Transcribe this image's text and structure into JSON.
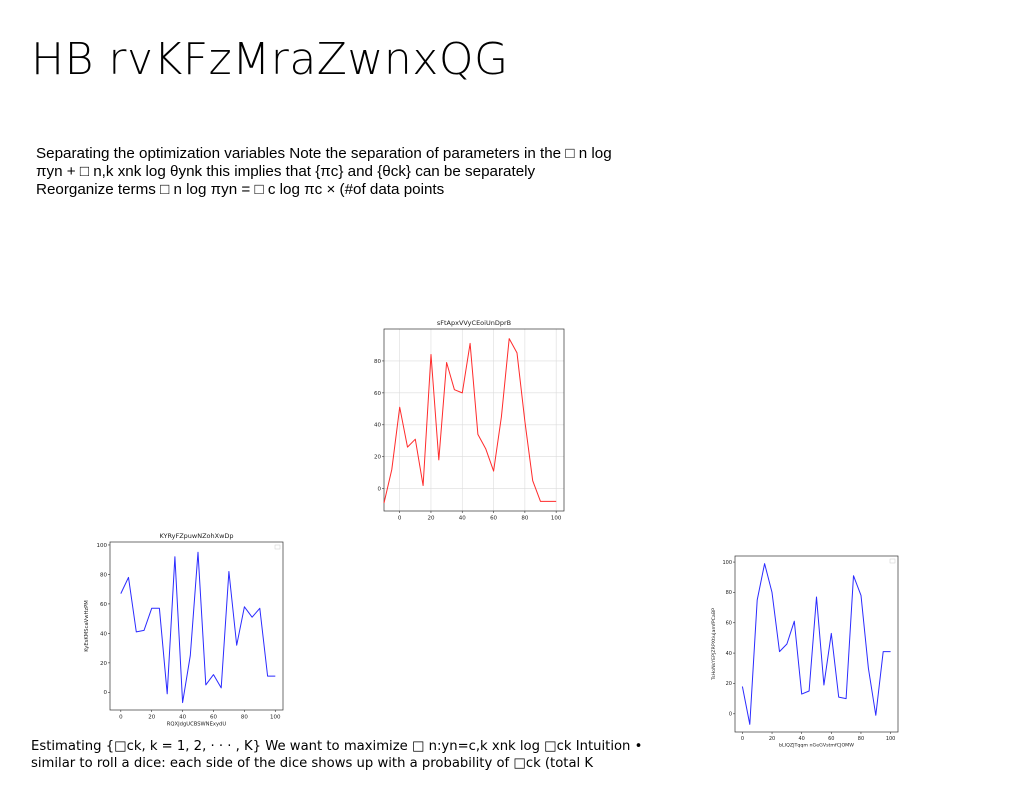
{
  "slide": {
    "title": "HB rvKFzMraZwnxQG",
    "paragraph1": "Separating the optimization variables Note the separation of parameters in the □ n log πyn + □ n,k xnk log θynk this implies that {πc} and {θck} can be separately Reorganize terms □ n log πyn = □ c log πc × (#of data points",
    "paragraph2": "Estimating {□ck, k = 1, 2, · · · , K} We want to maximize □ n:yn=c,k xnk log □ck Intuition • similar to roll a dice: each side of the dice shows up with a probability of □ck (total K"
  },
  "chart_data": [
    {
      "type": "line",
      "title": "sFtApxVVyCEoiUnDprB",
      "xlabel": "",
      "ylabel": "",
      "color": "#ff2b2b",
      "grid": true,
      "legend": "none",
      "xlim": [
        -10,
        105
      ],
      "ylim": [
        -14,
        100
      ],
      "xticks": [
        0,
        20,
        40,
        60,
        80,
        100
      ],
      "yticks": [
        0,
        20,
        40,
        60,
        80
      ],
      "x": [
        -10,
        -5,
        0,
        5,
        10,
        15,
        20,
        25,
        30,
        35,
        40,
        45,
        50,
        55,
        60,
        65,
        70,
        75,
        80,
        85,
        90,
        95,
        100
      ],
      "y": [
        -9,
        12,
        51,
        26,
        31,
        2,
        84,
        18,
        79,
        62,
        60,
        91,
        34,
        25,
        11,
        45,
        94,
        85,
        42,
        5,
        -8,
        -8,
        -8
      ]
    },
    {
      "type": "line",
      "title": "KYRyFZpuwNZohXwDp",
      "xlabel": "RQXJdgUCBSWNExydU",
      "ylabel": "KyEsKMScaVwHzPM",
      "color": "#2b2bff",
      "grid": false,
      "legend": "top-right",
      "xlim": [
        -7,
        105
      ],
      "ylim": [
        -12,
        102
      ],
      "xticks": [
        0,
        20,
        40,
        60,
        80,
        100
      ],
      "yticks": [
        0,
        20,
        40,
        60,
        80,
        100
      ],
      "x": [
        0,
        5,
        10,
        15,
        20,
        25,
        30,
        35,
        40,
        45,
        50,
        55,
        60,
        65,
        70,
        75,
        80,
        85,
        90,
        95,
        100
      ],
      "y": [
        67,
        78,
        41,
        42,
        57,
        57,
        -1,
        92,
        -7,
        25,
        95,
        5,
        12,
        3,
        82,
        32,
        58,
        51,
        57,
        11,
        11
      ]
    },
    {
      "type": "line",
      "title": "",
      "xlabel": "bLIQZJTqqm nGeGVstmfCJOMW",
      "ylabel": "TsHoNsYEPJZRPXtiuJamfPCaBP",
      "color": "#2b2bff",
      "grid": false,
      "legend": "top-right",
      "xlim": [
        -5,
        105
      ],
      "ylim": [
        -12,
        104
      ],
      "xticks": [
        0,
        20,
        40,
        60,
        80,
        100
      ],
      "yticks": [
        0,
        20,
        40,
        60,
        80,
        100
      ],
      "x": [
        0,
        5,
        10,
        15,
        20,
        25,
        30,
        35,
        40,
        45,
        50,
        55,
        60,
        65,
        70,
        75,
        80,
        85,
        90,
        95,
        100
      ],
      "y": [
        18,
        -7,
        75,
        99,
        80,
        41,
        46,
        61,
        13,
        15,
        77,
        19,
        53,
        11,
        10,
        91,
        78,
        30,
        -1,
        41,
        41
      ]
    }
  ]
}
